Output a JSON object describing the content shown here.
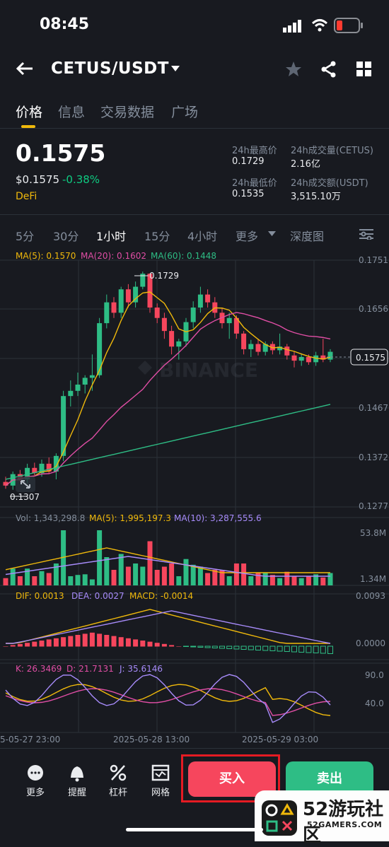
{
  "status_bar": {
    "time": "08:45"
  },
  "header": {
    "pair": "CETUS/USDT"
  },
  "tabs": [
    "价格",
    "信息",
    "交易数据",
    "广场"
  ],
  "price": {
    "last": "0.1575",
    "usd": "$0.1575",
    "change": "-0.38%",
    "tag": "DeFi",
    "change_color": "#0ecb81"
  },
  "stats": {
    "high_label": "24h最高价",
    "high": "0.1729",
    "low_label": "24h最低价",
    "low": "0.1535",
    "vol_base_label": "24h成交量(CETUS)",
    "vol_base": "2.16亿",
    "vol_quote_label": "24h成交额(USDT)",
    "vol_quote": "3,515.10万"
  },
  "intervals": [
    "5分",
    "30分",
    "1小时",
    "15分",
    "4小时",
    "更多",
    "深度图"
  ],
  "active_interval": "1小时",
  "indicators": {
    "ma": {
      "ma5": "MA(5): 0.1570",
      "ma20": "MA(20): 0.1602",
      "ma60": "MA(60): 0.1448"
    },
    "vol": {
      "vol": "Vol: 1,343,298.8",
      "ma5": "MA(5): 1,995,197.3",
      "ma10": "MA(10): 3,287,555.6"
    },
    "macd": {
      "dif": "DIF: 0.0013",
      "dea": "DEA: 0.0027",
      "macd": "MACD: -0.0014"
    },
    "kdj": {
      "k": "K: 26.3469",
      "d": "D: 21.7131",
      "j": "J: 35.6146"
    }
  },
  "chart_data": {
    "type": "candlestick",
    "price_axis": [
      "0.1751",
      "0.1656",
      "0.1567",
      "0.1467",
      "0.1372",
      "0.1277"
    ],
    "price_ylim": [
      0.1277,
      0.1751
    ],
    "current_price_label": "0.1575",
    "high_marker": "0.1729",
    "low_marker": "0.1307",
    "volume_axis": [
      "53.8M",
      "1.34M"
    ],
    "macd_axis": [
      "0.0093",
      "0.0000"
    ],
    "kdj_axis": [
      "90.0",
      "40.0"
    ],
    "time_axis": [
      "5-05-27 23:00",
      "2025-05-28 13:00",
      "2025-05-29 03:00"
    ],
    "candles": [
      [
        0.1325,
        0.1335,
        0.1312,
        0.1318
      ],
      [
        0.1318,
        0.1345,
        0.131,
        0.134
      ],
      [
        0.134,
        0.1348,
        0.1325,
        0.133
      ],
      [
        0.133,
        0.136,
        0.1322,
        0.1352
      ],
      [
        0.1352,
        0.1362,
        0.1338,
        0.1342
      ],
      [
        0.1342,
        0.1368,
        0.1335,
        0.136
      ],
      [
        0.136,
        0.1372,
        0.134,
        0.1345
      ],
      [
        0.1345,
        0.138,
        0.133,
        0.1375
      ],
      [
        0.1375,
        0.15,
        0.1365,
        0.149
      ],
      [
        0.149,
        0.152,
        0.147,
        0.15
      ],
      [
        0.15,
        0.1535,
        0.149,
        0.1512
      ],
      [
        0.1512,
        0.153,
        0.1495,
        0.1525
      ],
      [
        0.1525,
        0.157,
        0.15,
        0.153
      ],
      [
        0.153,
        0.164,
        0.1525,
        0.163
      ],
      [
        0.163,
        0.1685,
        0.162,
        0.167
      ],
      [
        0.167,
        0.168,
        0.164,
        0.165
      ],
      [
        0.165,
        0.17,
        0.164,
        0.1695
      ],
      [
        0.1695,
        0.1705,
        0.166,
        0.167
      ],
      [
        0.167,
        0.171,
        0.166,
        0.17
      ],
      [
        0.17,
        0.1729,
        0.1695,
        0.1725
      ],
      [
        0.1725,
        0.1726,
        0.165,
        0.166
      ],
      [
        0.166,
        0.1668,
        0.163,
        0.164
      ],
      [
        0.164,
        0.165,
        0.16,
        0.1615
      ],
      [
        0.1615,
        0.1625,
        0.157,
        0.1585
      ],
      [
        0.1585,
        0.16,
        0.156,
        0.1595
      ],
      [
        0.1595,
        0.164,
        0.1585,
        0.1632
      ],
      [
        0.1632,
        0.1672,
        0.162,
        0.166
      ],
      [
        0.166,
        0.17,
        0.165,
        0.1685
      ],
      [
        0.1685,
        0.1695,
        0.166,
        0.167
      ],
      [
        0.167,
        0.168,
        0.164,
        0.165
      ],
      [
        0.165,
        0.166,
        0.162,
        0.163
      ],
      [
        0.163,
        0.165,
        0.16,
        0.164
      ],
      [
        0.164,
        0.1645,
        0.16,
        0.161
      ],
      [
        0.161,
        0.1615,
        0.157,
        0.158
      ],
      [
        0.158,
        0.1598,
        0.1565,
        0.159
      ],
      [
        0.159,
        0.16,
        0.1568,
        0.1575
      ],
      [
        0.1575,
        0.1595,
        0.1568,
        0.159
      ],
      [
        0.159,
        0.1595,
        0.157,
        0.1578
      ],
      [
        0.1578,
        0.161,
        0.157,
        0.1585
      ],
      [
        0.1585,
        0.159,
        0.156,
        0.1568
      ],
      [
        0.1568,
        0.1575,
        0.1545,
        0.1558
      ],
      [
        0.1558,
        0.1572,
        0.1548,
        0.1565
      ],
      [
        0.1565,
        0.157,
        0.155,
        0.1555
      ],
      [
        0.1555,
        0.1575,
        0.1548,
        0.1568
      ],
      [
        0.1568,
        0.16,
        0.1555,
        0.156
      ],
      [
        0.156,
        0.158,
        0.1555,
        0.1575
      ]
    ],
    "ma5_color": "#f0b90b",
    "ma20_color": "#e04ea5",
    "ma60_color": "#2ebd85"
  },
  "bottom_bar": {
    "tools": [
      {
        "label": "更多",
        "icon": "more-dots-icon"
      },
      {
        "label": "提醒",
        "icon": "bell-icon"
      },
      {
        "label": "杠杆",
        "icon": "percent-icon"
      },
      {
        "label": "网格",
        "icon": "grid-bot-icon"
      }
    ],
    "buy": "买入",
    "sell": "卖出"
  },
  "watermark": {
    "text": "52游玩社区",
    "sub": "52GAMERS.COM"
  }
}
